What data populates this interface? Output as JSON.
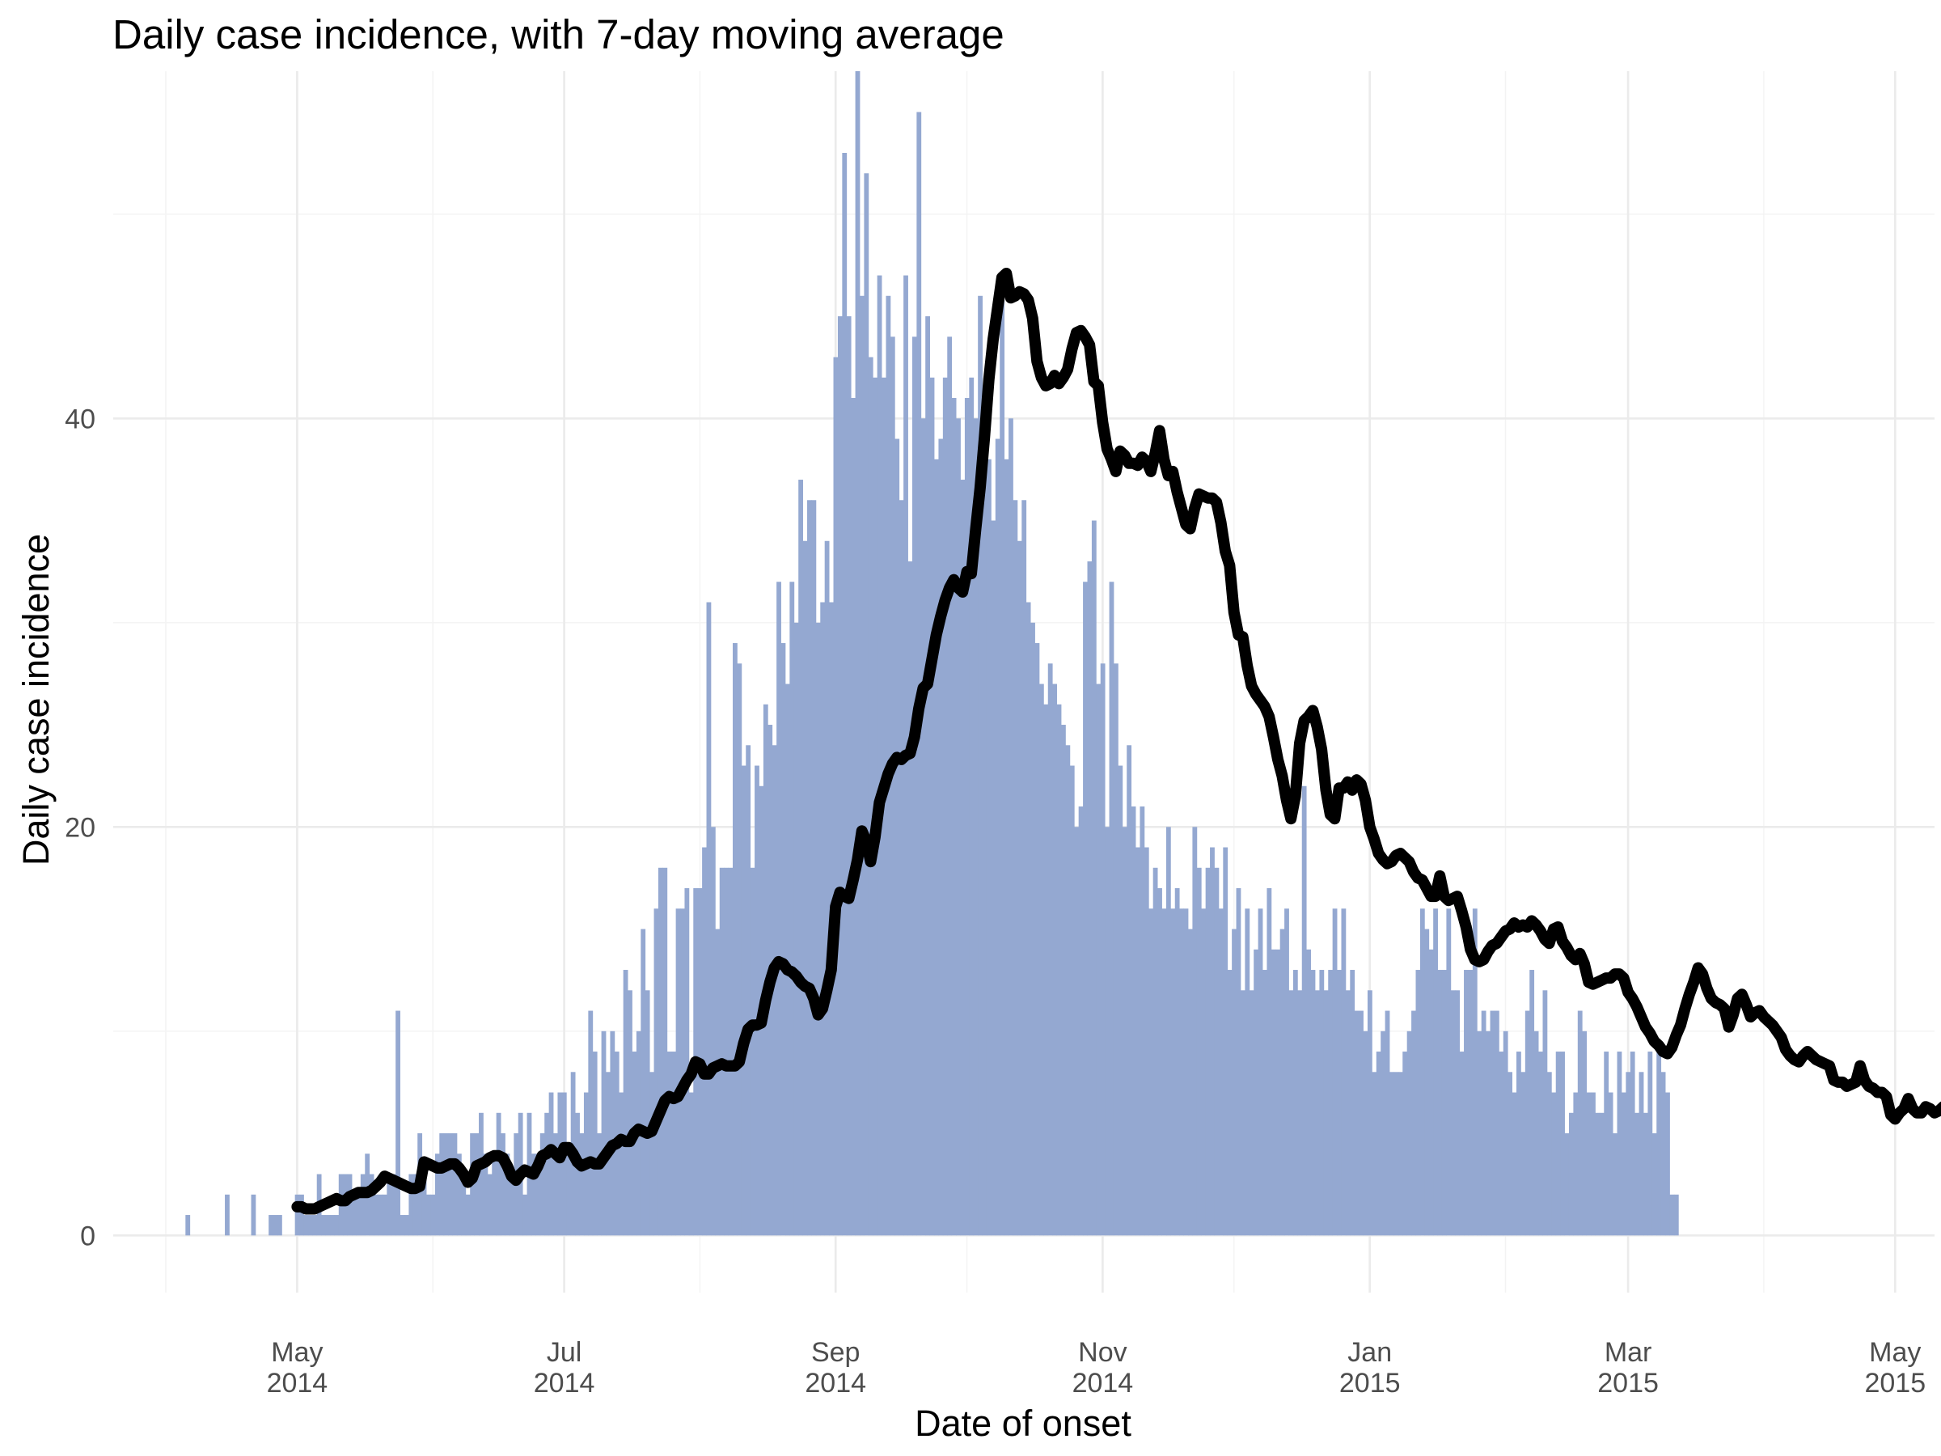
{
  "chart_data": {
    "type": "bar",
    "title": "Daily case incidence, with 7-day moving average",
    "xlabel": "Date of onset",
    "ylabel": "Daily case incidence",
    "x_range": [
      "2014-03-20",
      "2015-05-10"
    ],
    "ylim": [
      -2.8,
      57
    ],
    "y_ticks": [
      0,
      20,
      40
    ],
    "x_ticks": [
      {
        "date": "2014-05-01",
        "month": "May",
        "year": "2014"
      },
      {
        "date": "2014-07-01",
        "month": "Jul",
        "year": "2014"
      },
      {
        "date": "2014-09-01",
        "month": "Sep",
        "year": "2014"
      },
      {
        "date": "2014-11-01",
        "month": "Nov",
        "year": "2014"
      },
      {
        "date": "2015-01-01",
        "month": "Jan",
        "year": "2015"
      },
      {
        "date": "2015-03-01",
        "month": "Mar",
        "year": "2015"
      },
      {
        "date": "2015-05-01",
        "month": "May",
        "year": "2015"
      }
    ],
    "grid": true,
    "legend": "none",
    "bar_color": "#94a8d1",
    "line_color": "#000000",
    "series": [
      {
        "kind": "bar",
        "start_date": "2014-04-06",
        "values": [
          1,
          0,
          0,
          0,
          0,
          0,
          0,
          0,
          0,
          2,
          0,
          0,
          0,
          0,
          0,
          2,
          0,
          0,
          0,
          1,
          1,
          1,
          0,
          0,
          0,
          2,
          2,
          1,
          1,
          1,
          3,
          1,
          1,
          1,
          1,
          3,
          3,
          3,
          2,
          2,
          3,
          4,
          3,
          2,
          2,
          2,
          3,
          3,
          11,
          1,
          1,
          3,
          3,
          5,
          3,
          2,
          2,
          4,
          5,
          5,
          5,
          5,
          4,
          3,
          2,
          5,
          5,
          6,
          4,
          3,
          4,
          6,
          5,
          4,
          3,
          5,
          6,
          2,
          6,
          4,
          4,
          5,
          6,
          7,
          5,
          7,
          7,
          4,
          8,
          6,
          5,
          7,
          11,
          9,
          5,
          10,
          8,
          10,
          9,
          7,
          13,
          12,
          9,
          10,
          15,
          12,
          8,
          16,
          18,
          18,
          9,
          9,
          16,
          16,
          17,
          7,
          17,
          17,
          19,
          31,
          20,
          15,
          18,
          18,
          18,
          29,
          28,
          23,
          24,
          18,
          23,
          22,
          26,
          25,
          24,
          32,
          29,
          27,
          32,
          30,
          37,
          34,
          36,
          36,
          30,
          31,
          34,
          31,
          43,
          45,
          53,
          45,
          41,
          57,
          46,
          52,
          43,
          42,
          47,
          42,
          46,
          44,
          39,
          36,
          47,
          33,
          44,
          55,
          40,
          45,
          42,
          38,
          39,
          42,
          44,
          41,
          40,
          37,
          41,
          42,
          40,
          46,
          39,
          38,
          35,
          39,
          46,
          38,
          40,
          36,
          34,
          36,
          31,
          30,
          29,
          27,
          26,
          28,
          27,
          26,
          25,
          24,
          23,
          20,
          21,
          32,
          33,
          35,
          27,
          28,
          20,
          32,
          28,
          23,
          20,
          24,
          21,
          19,
          21,
          19,
          16,
          18,
          17,
          16,
          20,
          16,
          17,
          16,
          16,
          15,
          20,
          18,
          16,
          18,
          19,
          18,
          16,
          19,
          13,
          15,
          17,
          12,
          16,
          12,
          14,
          16,
          13,
          17,
          14,
          14,
          15,
          16,
          12,
          13,
          12,
          22,
          14,
          13,
          12,
          13,
          12,
          13,
          16,
          13,
          16,
          12,
          13,
          11,
          11,
          10,
          12,
          8,
          9,
          10,
          11,
          8,
          8,
          8,
          9,
          10,
          11,
          13,
          16,
          15,
          14,
          16,
          13,
          13,
          16,
          12,
          12,
          9,
          13,
          13,
          16,
          10,
          11,
          10,
          11,
          11,
          9,
          10,
          8,
          7,
          9,
          8,
          11,
          13,
          10,
          9,
          12,
          8,
          7,
          9,
          9,
          5,
          6,
          7,
          11,
          10,
          7,
          7,
          6,
          6,
          9,
          7,
          5,
          9,
          7,
          8,
          9,
          6,
          8,
          6,
          9,
          5,
          9,
          8,
          7,
          2,
          2
        ]
      },
      {
        "kind": "line",
        "name": "",
        "start_date": "2014-05-01",
        "values": [
          1.4,
          1.4,
          1.3,
          1.3,
          1.3,
          1.4,
          1.5,
          1.6,
          1.7,
          1.8,
          1.7,
          1.7,
          1.9,
          2.0,
          2.1,
          2.1,
          2.1,
          2.2,
          2.4,
          2.6,
          2.9,
          2.8,
          2.7,
          2.6,
          2.5,
          2.4,
          2.3,
          2.3,
          2.4,
          3.6,
          3.5,
          3.4,
          3.3,
          3.3,
          3.4,
          3.5,
          3.5,
          3.3,
          3.0,
          2.6,
          2.8,
          3.4,
          3.5,
          3.6,
          3.8,
          3.9,
          3.9,
          3.8,
          3.4,
          2.9,
          2.7,
          3.0,
          3.2,
          3.1,
          3.0,
          3.4,
          3.9,
          4.0,
          4.2,
          4.0,
          3.8,
          4.3,
          4.3,
          4.0,
          3.6,
          3.4,
          3.5,
          3.6,
          3.5,
          3.5,
          3.8,
          4.1,
          4.4,
          4.5,
          4.7,
          4.6,
          4.6,
          5.0,
          5.2,
          5.1,
          5.0,
          5.1,
          5.6,
          6.1,
          6.6,
          6.8,
          6.7,
          6.8,
          7.2,
          7.6,
          7.9,
          8.5,
          8.4,
          7.9,
          7.9,
          8.2,
          8.3,
          8.4,
          8.3,
          8.3,
          8.3,
          8.5,
          9.4,
          10.1,
          10.3,
          10.3,
          10.4,
          11.5,
          12.4,
          13.1,
          13.4,
          13.3,
          13.0,
          12.9,
          12.7,
          12.4,
          12.2,
          12.1,
          11.6,
          10.8,
          11.1,
          12.0,
          13.0,
          16.1,
          16.8,
          16.6,
          16.5,
          17.4,
          18.4,
          19.8,
          19.3,
          18.3,
          19.5,
          21.2,
          21.9,
          22.6,
          23.1,
          23.4,
          23.3,
          23.5,
          23.6,
          24.4,
          25.8,
          26.8,
          27.0,
          28.2,
          29.4,
          30.3,
          31.1,
          31.7,
          32.1,
          31.7,
          31.5,
          32.5,
          32.4,
          34.6,
          36.6,
          39.1,
          41.9,
          43.9,
          45.4,
          46.9,
          47.1,
          45.9,
          46.0,
          46.2,
          46.1,
          45.8,
          44.9,
          42.8,
          42.0,
          41.6,
          41.7,
          42.1,
          41.7,
          42.0,
          42.4,
          43.4,
          44.2,
          44.3,
          44.0,
          43.6,
          41.8,
          41.6,
          39.8,
          38.5,
          38.0,
          37.4,
          38.4,
          38.2,
          37.8,
          37.8,
          37.7,
          38.1,
          37.9,
          37.4,
          38.3,
          39.4,
          38.0,
          37.2,
          37.4,
          36.4,
          35.6,
          34.8,
          34.6,
          35.6,
          36.3,
          36.2,
          36.1,
          36.1,
          35.9,
          34.9,
          33.5,
          32.8,
          30.5,
          29.4,
          29.3,
          27.9,
          26.9,
          26.5,
          26.2,
          25.9,
          25.4,
          24.4,
          23.3,
          22.5,
          21.3,
          20.4,
          21.5,
          24.1,
          25.2,
          25.4,
          25.7,
          24.9,
          23.8,
          21.8,
          20.6,
          20.4,
          21.9,
          21.9,
          22.2,
          21.8,
          22.3,
          22.1,
          21.3,
          20.0,
          19.4,
          18.7,
          18.4,
          18.2,
          18.3,
          18.6,
          18.7,
          18.5,
          18.3,
          17.8,
          17.5,
          17.4,
          17.0,
          16.6,
          16.6,
          17.6,
          16.6,
          16.4,
          16.5,
          16.6,
          15.9,
          15.1,
          14.0,
          13.5,
          13.4,
          13.5,
          13.9,
          14.2,
          14.3,
          14.6,
          14.9,
          15.0,
          15.3,
          15.1,
          15.2,
          15.1,
          15.4,
          15.2,
          14.9,
          14.5,
          14.3,
          15.0,
          15.1,
          14.4,
          14.1,
          13.7,
          13.5,
          13.8,
          13.3,
          12.4,
          12.3,
          12.4,
          12.5,
          12.6,
          12.6,
          12.8,
          12.8,
          12.6,
          11.9,
          11.6,
          11.2,
          10.7,
          10.2,
          9.9,
          9.5,
          9.3,
          9.0,
          8.9,
          9.2,
          9.8,
          10.3,
          11.1,
          11.8,
          12.4,
          13.1,
          12.8,
          12.1,
          11.6,
          11.4,
          11.3,
          11.1,
          10.2,
          10.8,
          11.6,
          11.8,
          11.3,
          10.7,
          10.9,
          11.0,
          10.7,
          10.5,
          10.3,
          10.0,
          9.7,
          9.1,
          8.8,
          8.6,
          8.5,
          8.8,
          9.0,
          8.8,
          8.6,
          8.5,
          8.4,
          8.3,
          7.6,
          7.5,
          7.5,
          7.3,
          7.4,
          7.5,
          8.3,
          7.6,
          7.3,
          7.2,
          7.0,
          7.0,
          6.8,
          5.9,
          5.7,
          6.0,
          6.2,
          6.7,
          6.2,
          6.0,
          6.0,
          6.3,
          6.2,
          6.0,
          6.1,
          6.3,
          6.0,
          5.7,
          5.4,
          5.5,
          6.0,
          6.3,
          5.7,
          5.3
        ]
      }
    ]
  }
}
